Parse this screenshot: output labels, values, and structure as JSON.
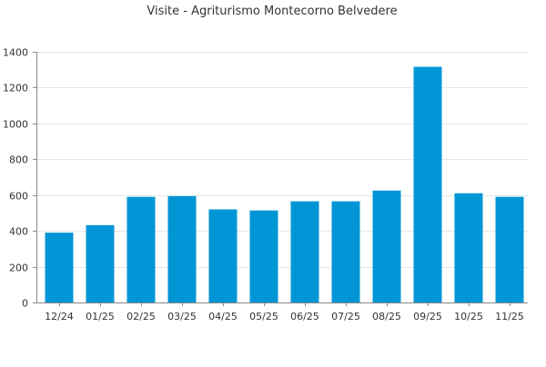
{
  "chart_data": {
    "type": "bar",
    "title": "Visite - Agriturismo Montecorno Belvedere",
    "categories": [
      "12/24",
      "01/25",
      "02/25",
      "03/25",
      "04/25",
      "05/25",
      "06/25",
      "07/25",
      "08/25",
      "09/25",
      "10/25",
      "11/25"
    ],
    "values": [
      390,
      432,
      590,
      594,
      520,
      514,
      565,
      565,
      625,
      1316,
      610,
      590
    ],
    "ylim": [
      0,
      1400
    ],
    "yticks": [
      0,
      200,
      400,
      600,
      800,
      1000,
      1200,
      1400
    ],
    "grid": true,
    "legend": "none",
    "bar_color": "#0096d6",
    "grid_color": "#e6e6e6",
    "axis_color": "#888888"
  }
}
